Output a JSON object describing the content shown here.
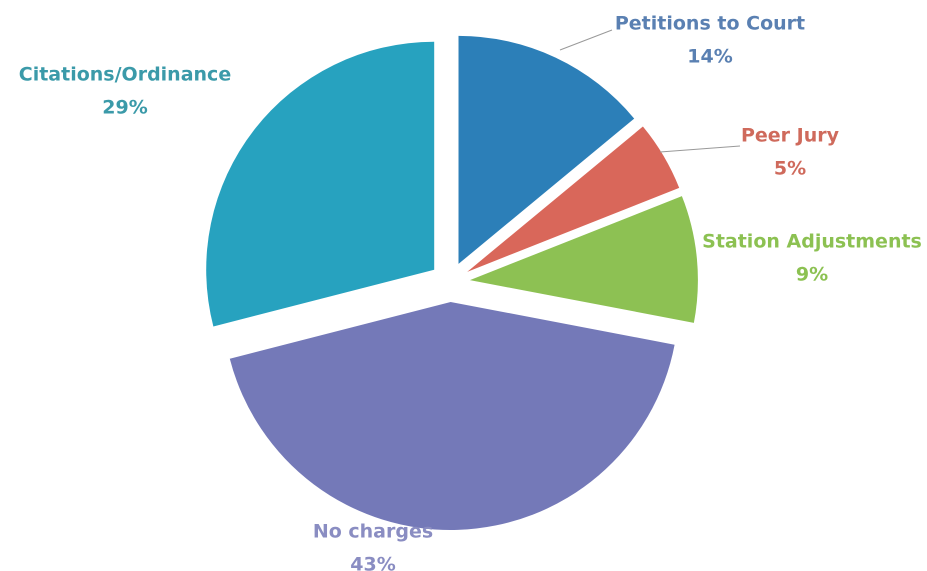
{
  "chart_data": {
    "type": "pie",
    "categories": [
      "Petitions to Court",
      "Peer Jury",
      "Station Adjustments",
      "No charges",
      "Citations/Ordinance"
    ],
    "values": [
      14,
      5,
      9,
      43,
      29
    ],
    "value_labels": [
      "14%",
      "5%",
      "9%",
      "43%",
      "29%"
    ],
    "colors": [
      "#2c7fb8",
      "#d9675a",
      "#8dc153",
      "#7479b8",
      "#27a2bf"
    ],
    "label_colors": [
      "#5a80b2",
      "#cf6a5c",
      "#8cc152",
      "#8a8dc2",
      "#3b9aa9"
    ]
  }
}
